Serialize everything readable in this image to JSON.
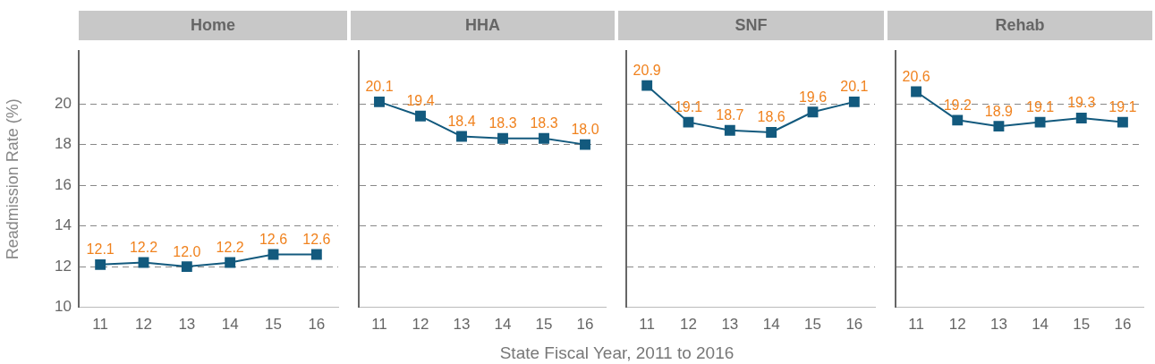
{
  "chart_data": [
    {
      "type": "line",
      "title": "Home",
      "ylabel": "Readmission Rate (%)",
      "annotations": [
        "State Fiscal Year, 2011 to 2016"
      ],
      "categories": [
        "11",
        "12",
        "13",
        "14",
        "15",
        "16"
      ],
      "series": [
        {
          "color": "#135a7e",
          "values": [
            12.1,
            12.2,
            12.0,
            12.2,
            12.6,
            12.6
          ],
          "value_labels": [
            "12.1",
            "12.2",
            "12.0",
            "12.2",
            "12.6",
            "12.6"
          ]
        }
      ],
      "ylim": [
        10,
        22.6
      ],
      "yticks": [
        10,
        12,
        14,
        16,
        18,
        20
      ],
      "grid": "y",
      "marker": "square"
    },
    {
      "type": "line",
      "title": "HHA",
      "categories": [
        "11",
        "12",
        "13",
        "14",
        "15",
        "16"
      ],
      "series": [
        {
          "color": "#135a7e",
          "values": [
            20.1,
            19.4,
            18.4,
            18.3,
            18.3,
            18.0
          ],
          "value_labels": [
            "20.1",
            "19.4",
            "18.4",
            "18.3",
            "18.3",
            "18.0"
          ]
        }
      ],
      "ylim": [
        10,
        22.6
      ],
      "yticks": [
        10,
        12,
        14,
        16,
        18,
        20
      ],
      "grid": "y",
      "marker": "square",
      "tick_labels": "x"
    },
    {
      "type": "line",
      "title": "SNF",
      "categories": [
        "11",
        "12",
        "13",
        "14",
        "15",
        "16"
      ],
      "series": [
        {
          "color": "#135a7e",
          "values": [
            20.9,
            19.1,
            18.7,
            18.6,
            19.6,
            20.1
          ],
          "value_labels": [
            "20.9",
            "19.1",
            "18.7",
            "18.6",
            "19.6",
            "20.1"
          ]
        }
      ],
      "ylim": [
        10,
        22.6
      ],
      "yticks": [
        10,
        12,
        14,
        16,
        18,
        20
      ],
      "grid": "y",
      "marker": "square",
      "tick_labels": "x"
    },
    {
      "type": "line",
      "title": "Rehab",
      "categories": [
        "11",
        "12",
        "13",
        "14",
        "15",
        "16"
      ],
      "series": [
        {
          "color": "#135a7e",
          "values": [
            20.6,
            19.2,
            18.9,
            19.1,
            19.3,
            19.1
          ],
          "value_labels": [
            "20.6",
            "19.2",
            "18.9",
            "19.1",
            "19.3",
            "19.1"
          ]
        }
      ],
      "ylim": [
        10,
        22.6
      ],
      "yticks": [
        10,
        12,
        14,
        16,
        18,
        20
      ],
      "grid": "y",
      "marker": "square",
      "tick_labels": "x"
    }
  ]
}
